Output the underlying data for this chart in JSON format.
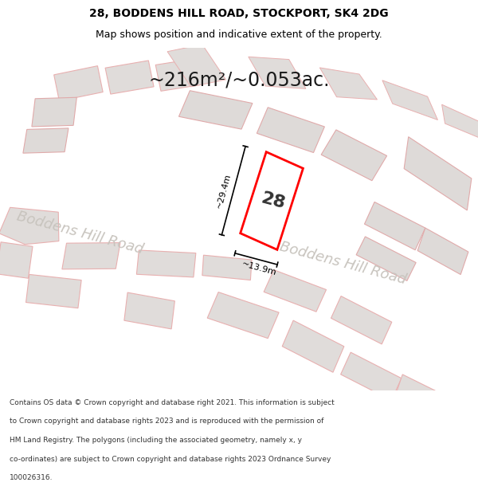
{
  "title_line1": "28, BODDENS HILL ROAD, STOCKPORT, SK4 2DG",
  "title_line2": "Map shows position and indicative extent of the property.",
  "area_text": "~216m²/~0.053ac.",
  "number_label": "28",
  "dim_vertical": "~29.4m",
  "dim_horizontal": "~13.9m",
  "road_label1": "Boddens Hill Road",
  "road_label2": "Boddens Hill Road",
  "footer_lines": [
    "Contains OS data © Crown copyright and database right 2021. This information is subject",
    "to Crown copyright and database rights 2023 and is reproduced with the permission of",
    "HM Land Registry. The polygons (including the associated geometry, namely x, y",
    "co-ordinates) are subject to Crown copyright and database rights 2023 Ordnance Survey",
    "100026316."
  ],
  "map_bg": "#f0eeeb",
  "building_outline": "#e8b0b0",
  "building_fill": "#e0dcda",
  "highlight_color": "#ff0000",
  "highlight_fill": "#ffffff",
  "dim_color": "#000000",
  "road_text_color": "#c8c4be",
  "title_color": "#000000",
  "footer_color": "#333333",
  "area_color": "#1a1a1a"
}
